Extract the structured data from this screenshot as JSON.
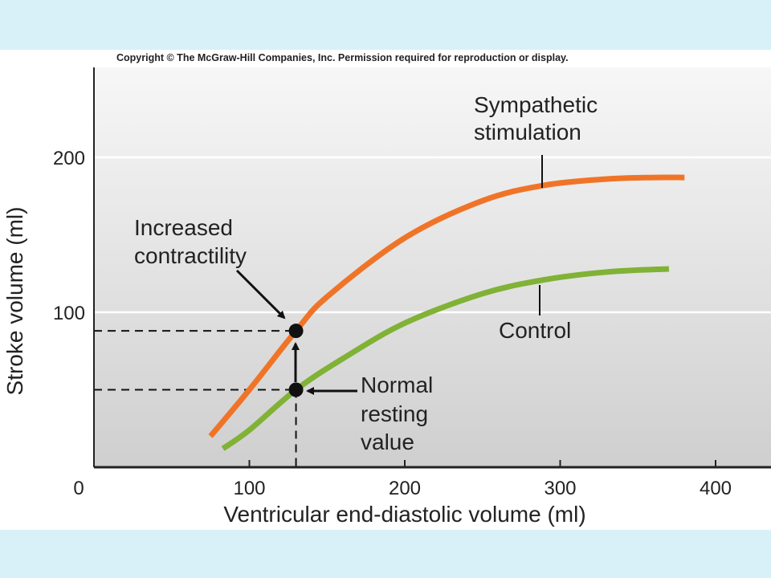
{
  "copyright": "Copyright © The McGraw-Hill Companies, Inc. Permission required for reproduction or display.",
  "chart_data": {
    "type": "line",
    "title": "",
    "xlabel": "Ventricular end-diastolic volume (ml)",
    "ylabel": "Stroke volume (ml)",
    "xlim": [
      0,
      430
    ],
    "ylim": [
      0,
      260
    ],
    "x_ticks": [
      "0",
      "100",
      "200",
      "300",
      "400"
    ],
    "y_ticks": [
      "100",
      "200"
    ],
    "grid": "horizontal at 100 and 200",
    "colors": {
      "sympathetic": "#f07428",
      "control": "#80b236",
      "axis": "#222222"
    },
    "series": [
      {
        "name": "Sympathetic stimulation",
        "x": [
          75,
          100,
          130,
          150,
          200,
          250,
          290,
          330,
          360,
          380
        ],
        "y": [
          20,
          50,
          88,
          110,
          148,
          172,
          182,
          186,
          187,
          187
        ]
      },
      {
        "name": "Control",
        "x": [
          83,
          100,
          130,
          160,
          200,
          250,
          290,
          330,
          370
        ],
        "y": [
          12,
          24,
          50,
          70,
          93,
          112,
          121,
          126,
          128
        ]
      }
    ],
    "points": [
      {
        "name": "Increased contractility",
        "x": 130,
        "y": 88
      },
      {
        "name": "Normal resting value",
        "x": 130,
        "y": 50
      }
    ],
    "annotations": [
      "Sympathetic stimulation",
      "Control",
      "Increased contractility",
      "Normal resting value"
    ]
  }
}
